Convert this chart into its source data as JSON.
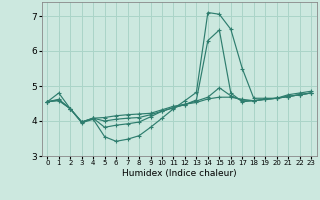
{
  "xlabel": "Humidex (Indice chaleur)",
  "background_color": "#cce8df",
  "grid_color": "#aad4c8",
  "line_color": "#2e7d6e",
  "xlim": [
    -0.5,
    23.5
  ],
  "ylim": [
    3.0,
    7.4
  ],
  "yticks": [
    3,
    4,
    5,
    6,
    7
  ],
  "xticks": [
    0,
    1,
    2,
    3,
    4,
    5,
    6,
    7,
    8,
    9,
    10,
    11,
    12,
    13,
    14,
    15,
    16,
    17,
    18,
    19,
    20,
    21,
    22,
    23
  ],
  "series": [
    {
      "x": [
        0,
        1,
        2,
        3,
        4,
        5,
        6,
        7,
        8,
        9,
        10,
        11,
        12,
        13,
        14,
        15,
        16,
        17,
        18,
        19,
        20,
        21,
        22,
        23
      ],
      "y": [
        4.55,
        4.8,
        4.35,
        3.95,
        4.05,
        3.55,
        3.42,
        3.48,
        3.58,
        3.82,
        4.08,
        4.35,
        4.58,
        4.82,
        7.1,
        7.05,
        6.62,
        5.5,
        4.65,
        4.65,
        4.65,
        4.75,
        4.8,
        4.85
      ]
    },
    {
      "x": [
        0,
        1,
        2,
        3,
        4,
        5,
        6,
        7,
        8,
        9,
        10,
        11,
        12,
        13,
        14,
        15,
        16,
        17,
        18,
        19,
        20,
        21,
        22,
        23
      ],
      "y": [
        4.55,
        4.62,
        4.35,
        3.97,
        4.08,
        3.82,
        3.88,
        3.92,
        3.97,
        4.12,
        4.28,
        4.38,
        4.47,
        4.6,
        6.3,
        6.6,
        4.8,
        4.55,
        4.58,
        4.62,
        4.65,
        4.7,
        4.75,
        4.8
      ]
    },
    {
      "x": [
        0,
        1,
        2,
        3,
        4,
        5,
        6,
        7,
        8,
        9,
        10,
        11,
        12,
        13,
        14,
        15,
        16,
        17,
        18,
        19,
        20,
        21,
        22,
        23
      ],
      "y": [
        4.55,
        4.6,
        4.35,
        3.97,
        4.08,
        4.0,
        4.05,
        4.08,
        4.1,
        4.18,
        4.28,
        4.38,
        4.47,
        4.57,
        4.68,
        4.95,
        4.72,
        4.58,
        4.58,
        4.62,
        4.65,
        4.7,
        4.75,
        4.8
      ]
    },
    {
      "x": [
        0,
        1,
        2,
        3,
        4,
        5,
        6,
        7,
        8,
        9,
        10,
        11,
        12,
        13,
        14,
        15,
        16,
        17,
        18,
        19,
        20,
        21,
        22,
        23
      ],
      "y": [
        4.55,
        4.58,
        4.35,
        3.97,
        4.08,
        4.1,
        4.15,
        4.18,
        4.2,
        4.22,
        4.32,
        4.42,
        4.48,
        4.53,
        4.63,
        4.68,
        4.68,
        4.62,
        4.58,
        4.62,
        4.65,
        4.7,
        4.75,
        4.8
      ]
    }
  ]
}
